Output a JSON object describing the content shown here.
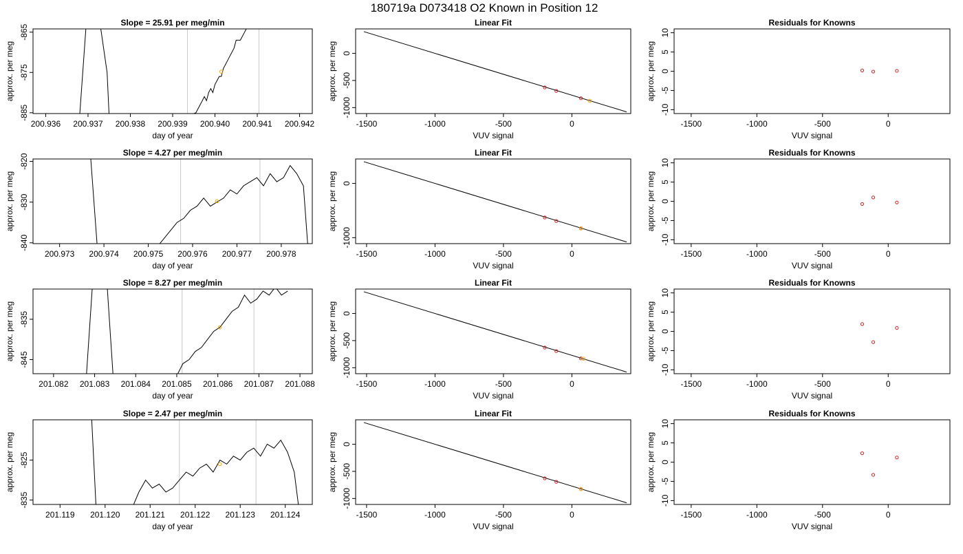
{
  "figure": {
    "title": "180719a     D073418   O2 Known in Position  12"
  },
  "chart_data": [
    {
      "type": "line",
      "row": 1,
      "col": 1,
      "title": "Slope =  25.91  per meg/min",
      "xlabel": "day of year",
      "ylabel": "approx. per meg",
      "xlim": [
        200.9357,
        200.9423
      ],
      "ylim": [
        -885.2,
        -864.2
      ],
      "xticks": [
        200.936,
        200.937,
        200.938,
        200.939,
        200.94,
        200.941,
        200.942
      ],
      "xtick_labels": [
        "200.936",
        "200.937",
        "200.938",
        "200.939",
        "200.940",
        "200.941",
        "200.942"
      ],
      "yticks": [
        -865,
        -875,
        -885
      ],
      "ytick_labels": [
        "-865",
        "-875",
        "-885"
      ],
      "vlines": [
        200.93935,
        200.94104
      ],
      "x": [
        200.9368,
        200.93695,
        200.9372,
        200.9373,
        200.93745,
        200.9375,
        200.9389,
        200.93915,
        200.9393,
        200.93955,
        200.93965,
        200.9397,
        200.93975,
        200.9398,
        200.93985,
        200.9399,
        200.93995,
        200.94,
        200.94005,
        200.9401,
        200.94015,
        200.9402,
        200.94025,
        200.9403,
        200.94035,
        200.9404,
        200.94045,
        200.9405,
        200.9406,
        200.9407,
        200.9408
      ],
      "y": [
        -886,
        -864,
        -864,
        -864,
        -875,
        -886,
        -886,
        -886,
        -886,
        -885,
        -883,
        -882,
        -881,
        -882,
        -880,
        -879,
        -880,
        -878,
        -877,
        -876,
        -876,
        -874,
        -873,
        -872,
        -871,
        -870,
        -869,
        -867,
        -867,
        -865,
        -863
      ],
      "marker": {
        "x": 200.94015,
        "y": -874.8
      }
    },
    {
      "type": "scatter",
      "row": 1,
      "col": 2,
      "title": "Linear Fit",
      "xlabel": "VUV signal",
      "ylabel": "approx. per meg",
      "xlim": [
        -1580,
        430
      ],
      "ylim": [
        -1110,
        450
      ],
      "xticks": [
        -1500,
        -1000,
        -500,
        0
      ],
      "xtick_labels": [
        "-1500",
        "-1000",
        "-500",
        "0"
      ],
      "yticks": [
        0,
        -500,
        -1000
      ],
      "ytick_labels": [
        "0",
        "-500",
        "-1000"
      ],
      "fit_line": {
        "x": [
          -1520,
          400
        ],
        "y": [
          400,
          -1080
        ]
      },
      "points": {
        "x": [
          -198,
          -114,
          66
        ],
        "y": [
          -628,
          -693,
          -828
        ]
      },
      "unknown": {
        "x": 130,
        "y": -875
      }
    },
    {
      "type": "scatter",
      "row": 1,
      "col": 3,
      "title": "Residuals for Knowns",
      "xlabel": "VUV signal",
      "ylabel": "approx. per meg",
      "xlim": [
        -1630,
        470
      ],
      "ylim": [
        -11,
        11
      ],
      "xticks": [
        -1500,
        -1000,
        -500,
        0
      ],
      "xtick_labels": [
        "-1500",
        "-1000",
        "-500",
        "0"
      ],
      "yticks": [
        10,
        5,
        0,
        -5,
        -10
      ],
      "ytick_labels": [
        "10",
        "5",
        "0",
        "-5",
        "-10"
      ],
      "points": {
        "x": [
          -198,
          -114,
          66
        ],
        "y": [
          0.2,
          -0.1,
          0.1
        ]
      }
    },
    {
      "type": "line",
      "row": 2,
      "col": 1,
      "title": "Slope =  4.27  per meg/min",
      "xlabel": "day of year",
      "ylabel": "approx. per meg",
      "xlim": [
        200.9724,
        200.9787
      ],
      "ylim": [
        -840.2,
        -819.4
      ],
      "xticks": [
        200.973,
        200.974,
        200.975,
        200.976,
        200.977,
        200.978
      ],
      "xtick_labels": [
        "200.973",
        "200.974",
        "200.975",
        "200.976",
        "200.977",
        "200.978"
      ],
      "yticks": [
        -820,
        -830,
        -840
      ],
      "ytick_labels": [
        "-820",
        "-830",
        "-840"
      ],
      "vlines": [
        200.97573,
        200.97752
      ],
      "x": [
        200.9737,
        200.97385,
        200.9752,
        200.97535,
        200.9755,
        200.97565,
        200.9758,
        200.97595,
        200.9761,
        200.97625,
        200.9764,
        200.97655,
        200.9767,
        200.97685,
        200.977,
        200.97715,
        200.9773,
        200.97745,
        200.9776,
        200.97775,
        200.9779,
        200.97805,
        200.9782,
        200.97835,
        200.9785,
        200.9786
      ],
      "y": [
        -819,
        -841,
        -841,
        -839,
        -837,
        -835,
        -834,
        -832,
        -831,
        -829,
        -831,
        -830,
        -829,
        -827,
        -828,
        -826,
        -825,
        -824,
        -826,
        -823,
        -825,
        -824,
        -821,
        -823,
        -826,
        -841
      ],
      "marker": {
        "x": 200.97655,
        "y": -829.8
      }
    },
    {
      "type": "scatter",
      "row": 2,
      "col": 2,
      "title": "Linear Fit",
      "xlabel": "VUV signal",
      "ylabel": "approx. per meg",
      "xlim": [
        -1580,
        430
      ],
      "ylim": [
        -1110,
        450
      ],
      "xticks": [
        -1500,
        -1000,
        -500,
        0
      ],
      "xtick_labels": [
        "-1500",
        "-1000",
        "-500",
        "0"
      ],
      "yticks": [
        0,
        -1000
      ],
      "ytick_labels": [
        "0",
        "-1000"
      ],
      "fit_line": {
        "x": [
          -1520,
          400
        ],
        "y": [
          400,
          -1080
        ]
      },
      "points": {
        "x": [
          -198,
          -114,
          66
        ],
        "y": [
          -628,
          -693,
          -828
        ]
      },
      "unknown": {
        "x": 66,
        "y": -830
      }
    },
    {
      "type": "scatter",
      "row": 2,
      "col": 3,
      "title": "Residuals for Knowns",
      "xlabel": "VUV signal",
      "ylabel": "approx. per meg",
      "xlim": [
        -1630,
        470
      ],
      "ylim": [
        -11,
        11
      ],
      "xticks": [
        -1500,
        -1000,
        -500,
        0
      ],
      "xtick_labels": [
        "-1500",
        "-1000",
        "-500",
        "0"
      ],
      "yticks": [
        10,
        5,
        0,
        -5,
        -10
      ],
      "ytick_labels": [
        "10",
        "5",
        "0",
        "-5",
        "-10"
      ],
      "points": {
        "x": [
          -198,
          -114,
          66
        ],
        "y": [
          -0.7,
          1.0,
          -0.3
        ]
      }
    },
    {
      "type": "line",
      "row": 3,
      "col": 1,
      "title": "Slope =  8.27  per meg/min",
      "xlabel": "day of year",
      "ylabel": "approx. per meg",
      "xlim": [
        201.0815,
        201.0883
      ],
      "ylim": [
        -848.5,
        -827.5
      ],
      "xticks": [
        201.082,
        201.083,
        201.084,
        201.085,
        201.086,
        201.087,
        201.088
      ],
      "xtick_labels": [
        "201.082",
        "201.083",
        "201.084",
        "201.085",
        "201.086",
        "201.087",
        "201.088"
      ],
      "yticks": [
        -835,
        -845
      ],
      "ytick_labels": [
        "-835",
        "-845"
      ],
      "vlines": [
        201.08513,
        201.08688
      ],
      "x": [
        201.0828,
        201.08295,
        201.0833,
        201.08345,
        201.085,
        201.08515,
        201.0853,
        201.08545,
        201.0856,
        201.08575,
        201.0859,
        201.08605,
        201.0862,
        201.08635,
        201.0865,
        201.08665,
        201.0868,
        201.08695,
        201.0871,
        201.08725,
        201.0874,
        201.08755,
        201.0877
      ],
      "y": [
        -849,
        -826,
        -826,
        -849,
        -849,
        -846,
        -845,
        -843,
        -842,
        -840,
        -838,
        -837,
        -835,
        -833,
        -832,
        -829,
        -831,
        -830,
        -828,
        -829,
        -827,
        -829,
        -828
      ],
      "marker": {
        "x": 201.08605,
        "y": -837
      }
    },
    {
      "type": "scatter",
      "row": 3,
      "col": 2,
      "title": "Linear Fit",
      "xlabel": "VUV signal",
      "ylabel": "approx. per meg",
      "xlim": [
        -1580,
        430
      ],
      "ylim": [
        -1110,
        450
      ],
      "xticks": [
        -1500,
        -1000,
        -500,
        0
      ],
      "xtick_labels": [
        "-1500",
        "-1000",
        "-500",
        "0"
      ],
      "yticks": [
        0,
        -500,
        -1000
      ],
      "ytick_labels": [
        "0",
        "-500",
        "-1000"
      ],
      "fit_line": {
        "x": [
          -1520,
          400
        ],
        "y": [
          400,
          -1080
        ]
      },
      "points": {
        "x": [
          -198,
          -114,
          66
        ],
        "y": [
          -628,
          -693,
          -828
        ]
      },
      "unknown": {
        "x": 85,
        "y": -835
      }
    },
    {
      "type": "scatter",
      "row": 3,
      "col": 3,
      "title": "Residuals for Knowns",
      "xlabel": "VUV signal",
      "ylabel": "approx. per meg",
      "xlim": [
        -1630,
        470
      ],
      "ylim": [
        -11,
        11
      ],
      "xticks": [
        -1500,
        -1000,
        -500,
        0
      ],
      "xtick_labels": [
        "-1500",
        "-1000",
        "-500",
        "0"
      ],
      "yticks": [
        10,
        5,
        0,
        -5,
        -10
      ],
      "ytick_labels": [
        "10",
        "5",
        "0",
        "-5",
        "-10"
      ],
      "points": {
        "x": [
          -198,
          -114,
          66
        ],
        "y": [
          1.9,
          -2.8,
          0.9
        ]
      }
    },
    {
      "type": "line",
      "row": 4,
      "col": 1,
      "title": "Slope =  2.47  per meg/min",
      "xlabel": "day of year",
      "ylabel": "approx. per meg",
      "xlim": [
        201.1184,
        201.1246
      ],
      "ylim": [
        -836.1,
        -814.9
      ],
      "xticks": [
        201.119,
        201.12,
        201.121,
        201.122,
        201.123,
        201.124
      ],
      "xtick_labels": [
        "201.119",
        "201.120",
        "201.121",
        "201.122",
        "201.123",
        "201.124"
      ],
      "yticks": [
        -825,
        -835
      ],
      "ytick_labels": [
        "-825",
        "-835"
      ],
      "vlines": [
        201.12165,
        201.12335
      ],
      "x": [
        201.1197,
        201.1198,
        201.1206,
        201.12075,
        201.1209,
        201.12105,
        201.1212,
        201.12135,
        201.1215,
        201.12165,
        201.1218,
        201.12195,
        201.1221,
        201.12225,
        201.1224,
        201.12255,
        201.1227,
        201.12285,
        201.123,
        201.12315,
        201.1233,
        201.12345,
        201.1236,
        201.12375,
        201.1239,
        201.12405,
        201.1242,
        201.1243
      ],
      "y": [
        -814,
        -837,
        -837,
        -833,
        -830,
        -832,
        -831,
        -833,
        -832,
        -830,
        -828,
        -829,
        -827,
        -826,
        -828,
        -825,
        -826,
        -824,
        -825,
        -823,
        -822,
        -824,
        -821,
        -822,
        -820,
        -823,
        -828,
        -837
      ],
      "marker": {
        "x": 201.12255,
        "y": -826
      }
    },
    {
      "type": "scatter",
      "row": 4,
      "col": 2,
      "title": "Linear Fit",
      "xlabel": "VUV signal",
      "ylabel": "approx. per meg",
      "xlim": [
        -1580,
        430
      ],
      "ylim": [
        -1110,
        450
      ],
      "xticks": [
        -1500,
        -1000,
        -500,
        0
      ],
      "xtick_labels": [
        "-1500",
        "-1000",
        "-500",
        "0"
      ],
      "yticks": [
        0,
        -500,
        -1000
      ],
      "ytick_labels": [
        "0",
        "-500",
        "-1000"
      ],
      "fit_line": {
        "x": [
          -1520,
          400
        ],
        "y": [
          400,
          -1080
        ]
      },
      "points": {
        "x": [
          -198,
          -114,
          66
        ],
        "y": [
          -628,
          -693,
          -828
        ]
      },
      "unknown": {
        "x": 66,
        "y": -826
      }
    },
    {
      "type": "scatter",
      "row": 4,
      "col": 3,
      "title": "Residuals for Knowns",
      "xlabel": "VUV signal",
      "ylabel": "approx. per meg",
      "xlim": [
        -1630,
        470
      ],
      "ylim": [
        -11,
        11
      ],
      "xticks": [
        -1500,
        -1000,
        -500,
        0
      ],
      "xtick_labels": [
        "-1500",
        "-1000",
        "-500",
        "0"
      ],
      "yticks": [
        10,
        5,
        0,
        -5,
        -10
      ],
      "ytick_labels": [
        "10",
        "5",
        "0",
        "-5",
        "-10"
      ],
      "points": {
        "x": [
          -198,
          -114,
          66
        ],
        "y": [
          2.3,
          -3.3,
          1.2
        ]
      }
    }
  ],
  "colors": {
    "line": "#000000",
    "vline": "#c8c8c8",
    "known_point": "#d22020",
    "unknown_point": "#ffa500",
    "axis": "#000000"
  }
}
